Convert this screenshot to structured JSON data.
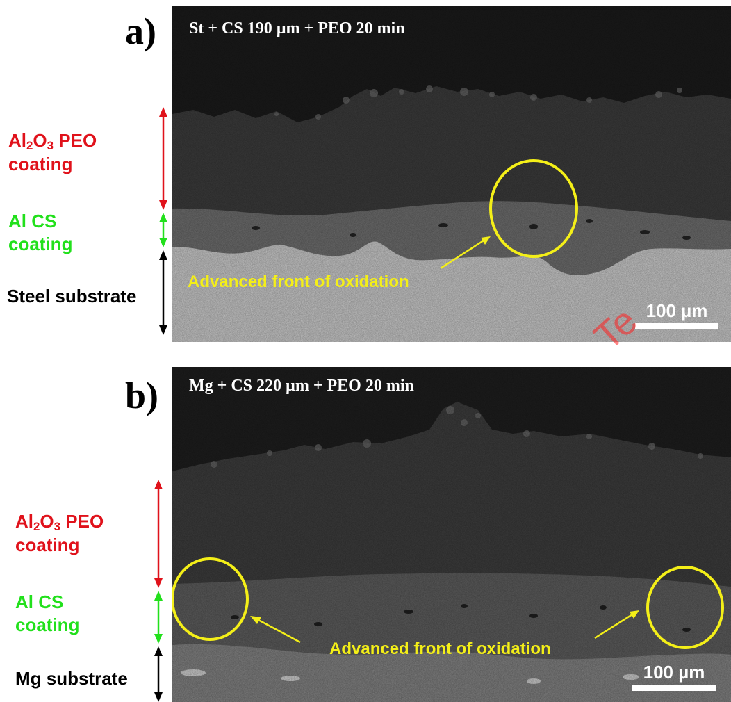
{
  "panels": [
    {
      "letter": "a)",
      "caption": "St + CS 190 µm + PEO 20 min",
      "labels": {
        "peo_prefix": "Al",
        "peo_sub1": "2",
        "peo_mid": "O",
        "peo_sub2": "3",
        "peo_suffix": " PEO",
        "peo_line2": "coating",
        "cs_line1": "Al CS",
        "cs_line2": "coating",
        "substrate": "Steel substrate"
      },
      "annotation": "Advanced front of oxidation",
      "scale_bar": "100 µm"
    },
    {
      "letter": "b)",
      "caption": "Mg + CS 220 µm + PEO 20 min",
      "labels": {
        "peo_prefix": "Al",
        "peo_sub1": "2",
        "peo_mid": "O",
        "peo_sub2": "3",
        "peo_suffix": " PEO",
        "peo_line2": "coating",
        "cs_line1": "Al CS",
        "cs_line2": "coating",
        "substrate": "Mg substrate"
      },
      "annotation": "Advanced front of oxidation",
      "scale_bar": "100 µm"
    }
  ],
  "colors": {
    "peo_label": "#e0121b",
    "cs_label": "#22e01c",
    "substrate_label": "#000000",
    "annotation": "#f4ef18"
  },
  "watermark": "Te"
}
